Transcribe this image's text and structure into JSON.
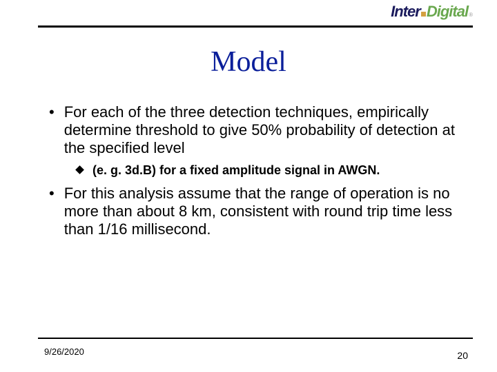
{
  "logo": {
    "part1": "Inter",
    "part2": "Digital",
    "reg": "®",
    "color_inter": "#1a1a5c",
    "color_dot": "#d4a040",
    "color_digital": "#6aa84f"
  },
  "title": {
    "text": "Model",
    "color": "#0b1f9a",
    "fontsize": 42
  },
  "bullets": [
    {
      "level": 1,
      "text": "For each of the three detection techniques, empirically determine threshold to give 50% probability of detection at the specified level"
    },
    {
      "level": 2,
      "text": "(e. g. 3d.B) for a fixed amplitude signal in AWGN."
    },
    {
      "level": 1,
      "text": "For this analysis assume that the range of operation is no more than about 8 km, consistent with round trip time less than 1/16 millisecond."
    }
  ],
  "footer": {
    "date": "9/26/2020",
    "page": "20"
  },
  "colors": {
    "rule": "#000000",
    "background": "#ffffff",
    "body_text": "#000000"
  }
}
